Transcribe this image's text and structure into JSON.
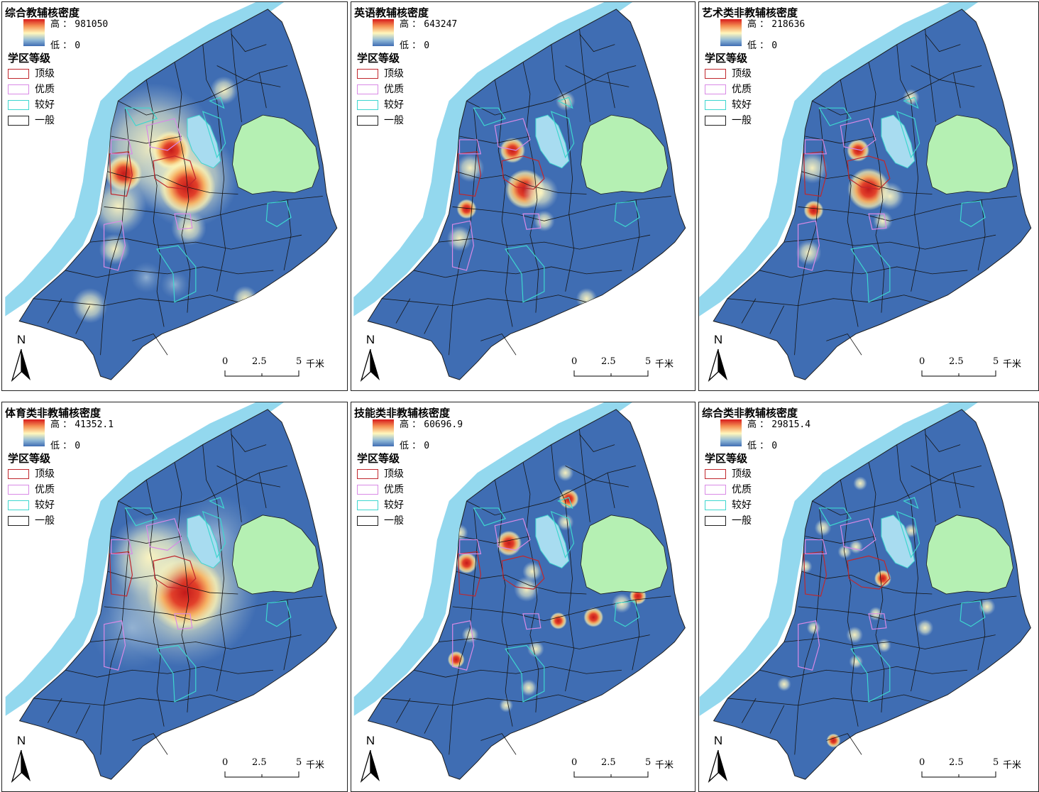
{
  "common": {
    "legend_title": "学区等级",
    "high_label": "高",
    "low_label": "低",
    "low_value": "0",
    "levels": [
      {
        "label": "顶级",
        "color": "#c0272d"
      },
      {
        "label": "优质",
        "color": "#d98ae6"
      },
      {
        "label": "较好",
        "color": "#3ed6cf"
      },
      {
        "label": "一般",
        "color": "#222222"
      }
    ],
    "north_label": "N",
    "scale": {
      "ticks": [
        "0",
        "2.5",
        "5"
      ],
      "unit": "千米"
    },
    "colors": {
      "low": "#3f6db3",
      "high": "#d7191c",
      "river": "#93d8ee",
      "park": "#b5f0b3"
    }
  },
  "panels": [
    {
      "title": "综合教辅核密度",
      "high_value": "981050"
    },
    {
      "title": "英语教辅核密度",
      "high_value": "643247"
    },
    {
      "title": "艺术类非教辅核密度",
      "high_value": "218636"
    },
    {
      "title": "体育类非教辅核密度",
      "high_value": "41352.1"
    },
    {
      "title": "技能类非教辅核密度",
      "high_value": "60696.9"
    },
    {
      "title": "综合类非教辅核密度",
      "high_value": "29815.4"
    }
  ]
}
